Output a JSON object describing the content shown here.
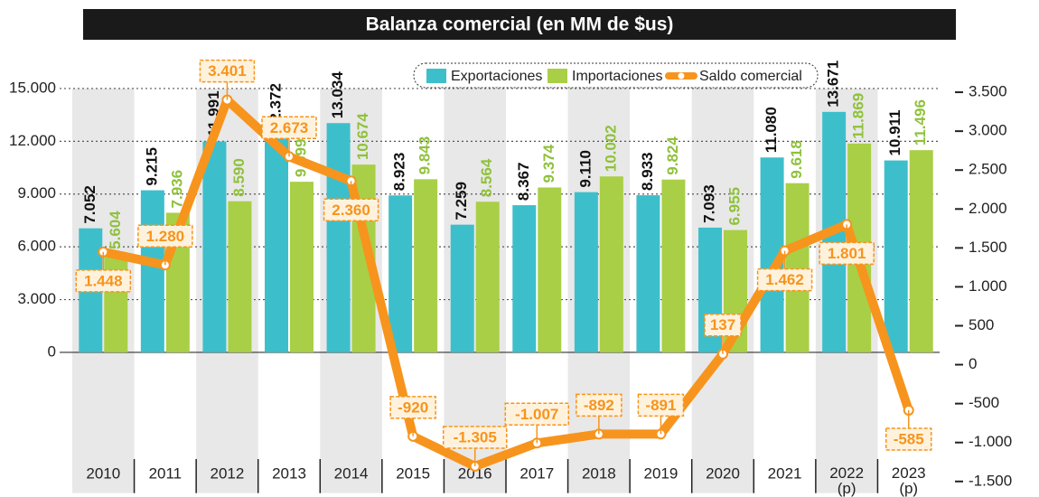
{
  "chart_data": {
    "type": "bar",
    "title": "Balanza comercial (en MM de $us)",
    "categories": [
      "2010",
      "2011",
      "2012",
      "2013",
      "2014",
      "2015",
      "2016",
      "2017",
      "2018",
      "2019",
      "2020",
      "2021",
      "2022 (p)",
      "2023 (p)"
    ],
    "series": [
      {
        "name": "Exportaciones",
        "color": "#3dbfcb",
        "values": [
          7052,
          9215,
          11991,
          12372,
          13034,
          8923,
          7259,
          8367,
          9110,
          8933,
          7093,
          11080,
          13671,
          10911
        ],
        "value_labels": [
          "7.052",
          "9.215",
          "11.991",
          "12.372",
          "13.034",
          "8.923",
          "7.259",
          "8.367",
          "9.110",
          "8.933",
          "7.093",
          "11.080",
          "13.671",
          "10.911"
        ]
      },
      {
        "name": "Importaciones",
        "color": "#a9cf46",
        "values": [
          5604,
          7936,
          8590,
          9699,
          10674,
          9843,
          8564,
          9374,
          10002,
          9824,
          6955,
          9618,
          11869,
          11496
        ],
        "value_labels": [
          "5.604",
          "7.936",
          "8.590",
          "9.699",
          "10.674",
          "9.843",
          "8.564",
          "9.374",
          "10.002",
          "9.824",
          "6.955",
          "9.618",
          "11.869",
          "11.496"
        ]
      },
      {
        "name": "Saldo comercial",
        "color": "#f7941d",
        "type": "line",
        "axis": "y2",
        "values": [
          1448,
          1280,
          3401,
          2673,
          2360,
          -920,
          -1305,
          -1007,
          -892,
          -891,
          137,
          1462,
          1801,
          -585
        ],
        "value_labels": [
          "1.448",
          "1.280",
          "3.401",
          "2.673",
          "2.360",
          "-920",
          "-1.305",
          "-1.007",
          "-892",
          "-891",
          "137",
          "1.462",
          "1.801",
          "-585"
        ]
      }
    ],
    "ylim": [
      -8000,
      17000
    ],
    "yticks": [
      {
        "value": 0,
        "label": "0"
      },
      {
        "value": 3000,
        "label": "3.000"
      },
      {
        "value": 6000,
        "label": "6.000"
      },
      {
        "value": 9000,
        "label": "9.000"
      },
      {
        "value": 12000,
        "label": "12.000"
      },
      {
        "value": 15000,
        "label": "15.000"
      }
    ],
    "y2lim": [
      -1650,
      4000
    ],
    "y2ticks": [
      {
        "value": 3500,
        "label": "3.500"
      },
      {
        "value": 3000,
        "label": "3.000"
      },
      {
        "value": 2500,
        "label": "2.500"
      },
      {
        "value": 2000,
        "label": "2.000"
      },
      {
        "value": 1500,
        "label": "1.500"
      },
      {
        "value": 1000,
        "label": "1.000"
      },
      {
        "value": 500,
        "label": "500"
      },
      {
        "value": 0,
        "label": "0"
      },
      {
        "value": -500,
        "label": "-500"
      },
      {
        "value": -1000,
        "label": "-1.000"
      },
      {
        "value": -1500,
        "label": "-1.500"
      }
    ],
    "grid": true,
    "legend": "top"
  }
}
